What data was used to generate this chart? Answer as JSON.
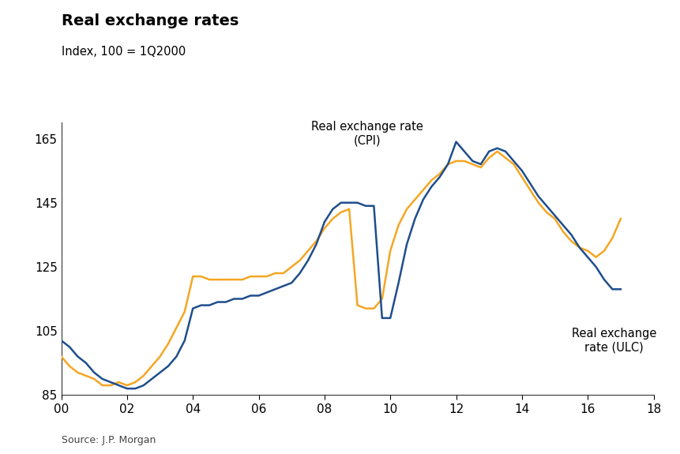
{
  "title": "Real exchange rates",
  "subtitle": "Index, 100 = 1Q2000",
  "source": "Source: J.P. Morgan",
  "ylim": [
    85,
    170
  ],
  "yticks": [
    85,
    105,
    125,
    145,
    165
  ],
  "xlim": [
    2000.0,
    2018.0
  ],
  "xticks": [
    2000,
    2002,
    2004,
    2006,
    2008,
    2010,
    2012,
    2014,
    2016,
    2018
  ],
  "xticklabels": [
    "00",
    "02",
    "04",
    "06",
    "08",
    "10",
    "12",
    "14",
    "16",
    "18"
  ],
  "cpi_color": "#F5A623",
  "ulc_color": "#1F4E8C",
  "cpi_label": "Real exchange rate\n(CPI)",
  "ulc_label": "Real exchange\nrate (ULC)",
  "cpi_x": [
    2000.0,
    2000.25,
    2000.5,
    2000.75,
    2001.0,
    2001.25,
    2001.5,
    2001.75,
    2002.0,
    2002.25,
    2002.5,
    2002.75,
    2003.0,
    2003.25,
    2003.5,
    2003.75,
    2004.0,
    2004.25,
    2004.5,
    2004.75,
    2005.0,
    2005.25,
    2005.5,
    2005.75,
    2006.0,
    2006.25,
    2006.5,
    2006.75,
    2007.0,
    2007.25,
    2007.5,
    2007.75,
    2008.0,
    2008.25,
    2008.5,
    2008.75,
    2009.0,
    2009.25,
    2009.5,
    2009.75,
    2010.0,
    2010.25,
    2010.5,
    2010.75,
    2011.0,
    2011.25,
    2011.5,
    2011.75,
    2012.0,
    2012.25,
    2012.5,
    2012.75,
    2013.0,
    2013.25,
    2013.5,
    2013.75,
    2014.0,
    2014.25,
    2014.5,
    2014.75,
    2015.0,
    2015.25,
    2015.5,
    2015.75,
    2016.0,
    2016.25,
    2016.5,
    2016.75,
    2017.0
  ],
  "cpi_y": [
    97,
    94,
    92,
    91,
    90,
    88,
    88,
    89,
    88,
    89,
    91,
    94,
    97,
    101,
    106,
    111,
    122,
    122,
    121,
    121,
    121,
    121,
    121,
    122,
    122,
    122,
    123,
    123,
    125,
    127,
    130,
    133,
    137,
    140,
    142,
    143,
    113,
    112,
    112,
    115,
    130,
    138,
    143,
    146,
    149,
    152,
    154,
    157,
    158,
    158,
    157,
    156,
    159,
    161,
    159,
    157,
    153,
    149,
    145,
    142,
    140,
    136,
    133,
    131,
    130,
    128,
    130,
    134,
    140
  ],
  "ulc_x": [
    2000.0,
    2000.25,
    2000.5,
    2000.75,
    2001.0,
    2001.25,
    2001.5,
    2001.75,
    2002.0,
    2002.25,
    2002.5,
    2002.75,
    2003.0,
    2003.25,
    2003.5,
    2003.75,
    2004.0,
    2004.25,
    2004.5,
    2004.75,
    2005.0,
    2005.25,
    2005.5,
    2005.75,
    2006.0,
    2006.25,
    2006.5,
    2006.75,
    2007.0,
    2007.25,
    2007.5,
    2007.75,
    2008.0,
    2008.25,
    2008.5,
    2008.75,
    2009.0,
    2009.25,
    2009.5,
    2009.75,
    2010.0,
    2010.25,
    2010.5,
    2010.75,
    2011.0,
    2011.25,
    2011.5,
    2011.75,
    2012.0,
    2012.25,
    2012.5,
    2012.75,
    2013.0,
    2013.25,
    2013.5,
    2013.75,
    2014.0,
    2014.25,
    2014.5,
    2014.75,
    2015.0,
    2015.25,
    2015.5,
    2015.75,
    2016.0,
    2016.25,
    2016.5,
    2016.75,
    2017.0
  ],
  "ulc_y": [
    102,
    100,
    97,
    95,
    92,
    90,
    89,
    88,
    87,
    87,
    88,
    90,
    92,
    94,
    97,
    102,
    112,
    113,
    113,
    114,
    114,
    115,
    115,
    116,
    116,
    117,
    118,
    119,
    120,
    123,
    127,
    132,
    139,
    143,
    145,
    145,
    145,
    144,
    144,
    109,
    109,
    120,
    132,
    140,
    146,
    150,
    153,
    157,
    164,
    161,
    158,
    157,
    161,
    162,
    161,
    158,
    155,
    151,
    147,
    144,
    141,
    138,
    135,
    131,
    128,
    125,
    121,
    118,
    118
  ]
}
